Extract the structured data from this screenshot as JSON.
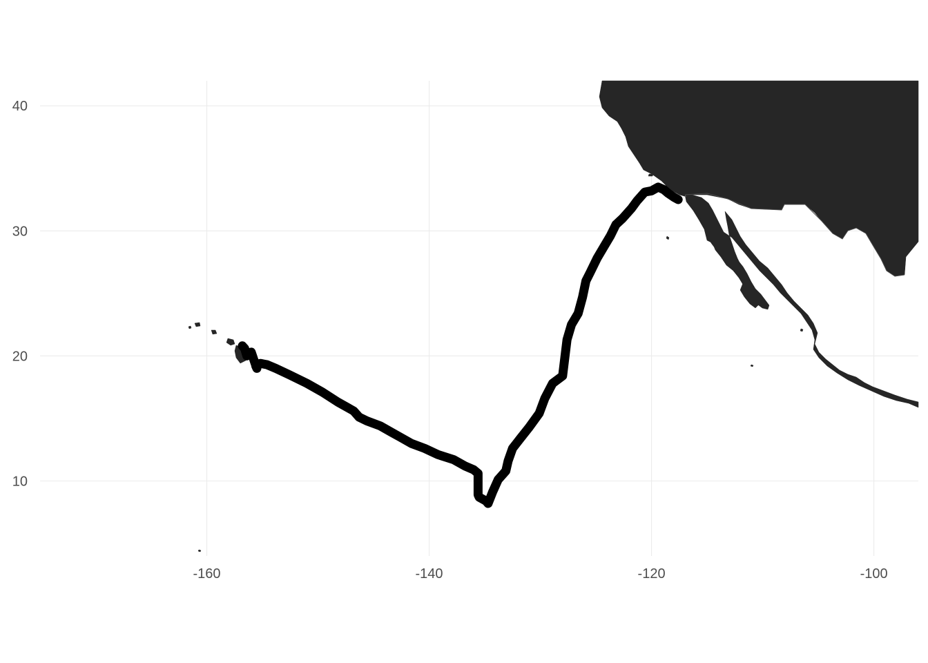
{
  "chart_data": {
    "type": "map",
    "title": "",
    "xlabel": "",
    "ylabel": "",
    "xlim": [
      -175,
      -96
    ],
    "ylim": [
      4,
      42
    ],
    "grid": true,
    "x_ticks": [
      -160,
      -140,
      -120,
      -100
    ],
    "y_ticks": [
      10,
      20,
      30,
      40
    ],
    "x_tick_labels": [
      "-160",
      "-140",
      "-120",
      "-100"
    ],
    "y_tick_labels": [
      "10",
      "20",
      "30",
      "40"
    ],
    "land_color": "#262626",
    "track_color": "#000000",
    "grid_color": "#ebebeb",
    "track": {
      "lon": [
        -156.8,
        -156.6,
        -156.4,
        -156.0,
        -155.7,
        -155.5,
        -155.6,
        -155.2,
        -154.6,
        -153.8,
        -152.6,
        -151.0,
        -149.6,
        -148.2,
        -146.8,
        -146.3,
        -145.6,
        -144.4,
        -143.4,
        -142.6,
        -141.6,
        -140.4,
        -139.2,
        -137.8,
        -136.8,
        -136.0,
        -135.6,
        -135.6,
        -135.5,
        -134.9,
        -134.7,
        -134.3,
        -133.8,
        -133.1,
        -132.9,
        -132.5,
        -131.8,
        -131.0,
        -130.1,
        -129.6,
        -128.9,
        -128.0,
        -127.6,
        -127.2,
        -126.6,
        -126.2,
        -125.9,
        -125.5,
        -124.9,
        -124.3,
        -123.7,
        -123.2,
        -122.6,
        -121.8,
        -121.3,
        -120.6,
        -120.0,
        -119.4,
        -118.9,
        -118.5,
        -118.0,
        -117.6
      ],
      "lat": [
        20.8,
        20.6,
        20.0,
        20.3,
        19.5,
        19.0,
        19.2,
        19.4,
        19.3,
        19.0,
        18.5,
        17.8,
        17.1,
        16.3,
        15.6,
        15.1,
        14.8,
        14.4,
        13.9,
        13.5,
        13.0,
        12.6,
        12.1,
        11.7,
        11.2,
        10.9,
        10.6,
        8.9,
        8.7,
        8.4,
        8.2,
        9.1,
        10.1,
        10.8,
        11.6,
        12.6,
        13.4,
        14.3,
        15.4,
        16.6,
        17.8,
        18.4,
        21.3,
        22.5,
        23.4,
        24.7,
        26.0,
        26.7,
        27.8,
        28.7,
        29.6,
        30.5,
        31.0,
        31.8,
        32.4,
        33.1,
        33.2,
        33.5,
        33.3,
        33.0,
        32.7,
        32.5
      ]
    }
  }
}
